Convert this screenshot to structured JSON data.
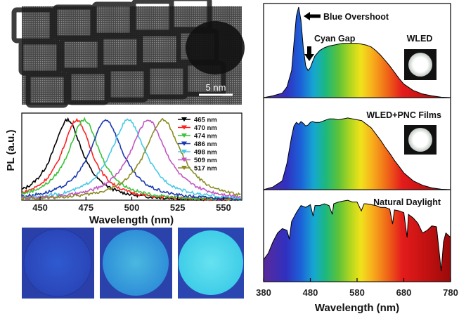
{
  "tem": {
    "scale_label": "5 nm"
  },
  "colors": {
    "pl": [
      "#000000",
      "#ff2020",
      "#3dc33d",
      "#1a37b0",
      "#49c9e8",
      "#c255c2",
      "#8b8c24"
    ],
    "blue_photo": "#2a50c8",
    "cyan_photo": "#3ab0e8"
  },
  "chart_data": [
    {
      "type": "line",
      "title": "",
      "xlabel": "Wavelength (nm)",
      "ylabel": "PL (a.u.)",
      "xlim": [
        440,
        560
      ],
      "x_ticks": [
        450,
        475,
        500,
        525,
        550
      ],
      "ylim": [
        0,
        1.08
      ],
      "series": [
        {
          "name": "465 nm",
          "peak": 465,
          "fwhm": 20
        },
        {
          "name": "470 nm",
          "peak": 470,
          "fwhm": 20
        },
        {
          "name": "474 nm",
          "peak": 474,
          "fwhm": 21
        },
        {
          "name": "486 nm",
          "peak": 486,
          "fwhm": 22
        },
        {
          "name": "498 nm",
          "peak": 498,
          "fwhm": 23
        },
        {
          "name": "509 nm",
          "peak": 509,
          "fwhm": 24
        },
        {
          "name": "517 nm",
          "peak": 517,
          "fwhm": 24
        }
      ]
    },
    {
      "type": "area",
      "title": "",
      "xlabel": "Wavelength (nm)",
      "xlim": [
        380,
        780
      ],
      "x_ticks": [
        380,
        480,
        580,
        680,
        780
      ],
      "panels": [
        {
          "name": "WLED",
          "inset_label": "WLED",
          "annotations": [
            "Blue Overshoot",
            "Cyan Gap"
          ],
          "x": [
            380,
            400,
            420,
            430,
            440,
            445,
            450,
            455,
            460,
            465,
            470,
            475,
            480,
            485,
            490,
            500,
            510,
            520,
            530,
            540,
            550,
            560,
            570,
            580,
            590,
            600,
            610,
            620,
            630,
            640,
            650,
            660,
            670,
            680,
            700,
            720,
            740,
            760,
            780
          ],
          "y": [
            0,
            0.02,
            0.05,
            0.12,
            0.3,
            0.6,
            0.9,
            1.0,
            0.85,
            0.55,
            0.35,
            0.3,
            0.33,
            0.4,
            0.46,
            0.52,
            0.55,
            0.57,
            0.58,
            0.59,
            0.6,
            0.6,
            0.6,
            0.6,
            0.59,
            0.58,
            0.56,
            0.52,
            0.47,
            0.41,
            0.35,
            0.28,
            0.21,
            0.15,
            0.08,
            0.04,
            0.02,
            0.005,
            0
          ]
        },
        {
          "name": "WLED+PNC Films",
          "inset_label": "WLED+PNC Films",
          "annotations": [],
          "x": [
            380,
            400,
            420,
            430,
            440,
            445,
            450,
            455,
            460,
            465,
            470,
            475,
            480,
            485,
            490,
            500,
            510,
            520,
            530,
            540,
            550,
            560,
            570,
            580,
            590,
            600,
            610,
            620,
            630,
            640,
            650,
            660,
            670,
            680,
            700,
            720,
            740,
            760,
            780
          ],
          "y": [
            0,
            0.03,
            0.1,
            0.3,
            0.6,
            0.72,
            0.76,
            0.74,
            0.77,
            0.75,
            0.72,
            0.73,
            0.76,
            0.77,
            0.76,
            0.76,
            0.78,
            0.8,
            0.8,
            0.79,
            0.8,
            0.81,
            0.8,
            0.79,
            0.78,
            0.74,
            0.7,
            0.63,
            0.56,
            0.48,
            0.41,
            0.33,
            0.26,
            0.19,
            0.1,
            0.05,
            0.02,
            0.005,
            0
          ]
        },
        {
          "name": "Natural Daylight",
          "inset_label": "Natural Daylight",
          "annotations": [],
          "x": [
            380,
            390,
            400,
            405,
            410,
            420,
            430,
            435,
            440,
            450,
            460,
            470,
            480,
            486,
            490,
            500,
            510,
            520,
            527,
            530,
            540,
            550,
            560,
            570,
            580,
            589,
            595,
            600,
            610,
            620,
            630,
            640,
            650,
            656,
            660,
            670,
            680,
            687,
            690,
            700,
            710,
            720,
            730,
            740,
            750,
            760,
            765,
            770,
            780
          ],
          "y": [
            0.25,
            0.32,
            0.45,
            0.5,
            0.55,
            0.6,
            0.58,
            0.48,
            0.68,
            0.78,
            0.86,
            0.84,
            0.87,
            0.74,
            0.86,
            0.86,
            0.88,
            0.86,
            0.76,
            0.88,
            0.9,
            0.91,
            0.92,
            0.9,
            0.9,
            0.8,
            0.88,
            0.88,
            0.87,
            0.86,
            0.84,
            0.84,
            0.82,
            0.65,
            0.81,
            0.8,
            0.78,
            0.5,
            0.76,
            0.72,
            0.66,
            0.55,
            0.58,
            0.63,
            0.62,
            0.12,
            0.45,
            0.55,
            0.5
          ]
        }
      ]
    }
  ],
  "labels": {
    "blue_overshoot": "Blue Overshoot",
    "cyan_gap": "Cyan Gap",
    "wled": "WLED",
    "wled_pnc": "WLED+PNC Films",
    "daylight": "Natural Daylight"
  }
}
